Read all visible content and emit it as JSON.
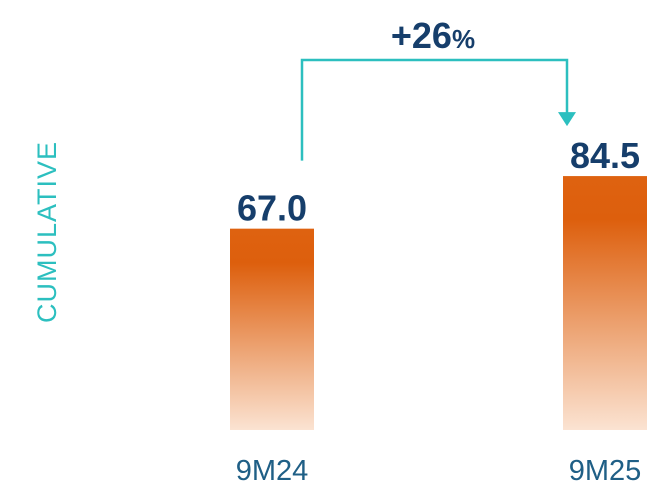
{
  "chart_data": {
    "type": "bar",
    "categories": [
      "9M24",
      "9M25"
    ],
    "values": [
      67.0,
      84.5
    ],
    "value_labels": [
      "67.0",
      "84.5"
    ],
    "side_label": "CUMULATIVE",
    "change": {
      "from": "9M24",
      "to": "9M25",
      "number": "+26",
      "unit": "%"
    },
    "ylim": [
      0,
      100
    ],
    "grid": false,
    "colors": {
      "bar_top": "#dd5f0d",
      "bar_bottom": "#fbe3d2",
      "connector": "#2cbfbf",
      "value_text": "#163e6b",
      "category_text": "#1f5f86",
      "side_label": "#2cbfbf"
    }
  }
}
